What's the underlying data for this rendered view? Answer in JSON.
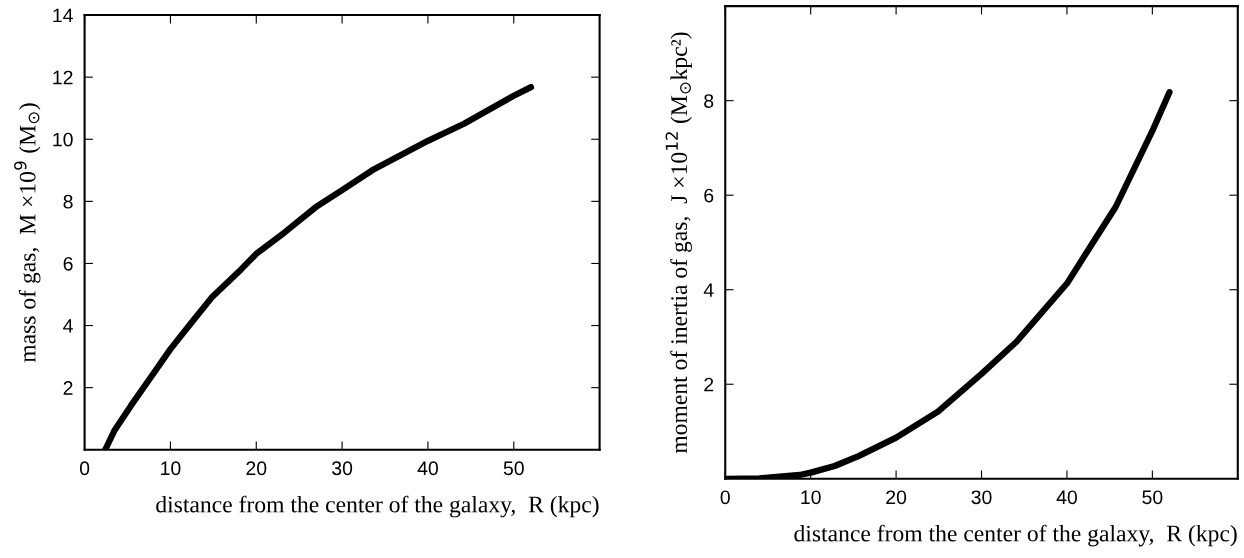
{
  "chart_data": [
    {
      "type": "line",
      "xlabel": "distance from the center of the galaxy,  R (kpc)",
      "ylabel": "mass of gas,  M ×10$^{9}$ (M$_{⊙}$)",
      "xlim": [
        0,
        60
      ],
      "ylim": [
        0,
        14
      ],
      "xticks": [
        0,
        10,
        20,
        30,
        40,
        50
      ],
      "yticks": [
        2,
        4,
        6,
        8,
        10,
        12,
        14
      ],
      "grid": false,
      "legend": false,
      "marker": "none",
      "line_style": "solid",
      "series": [
        {
          "color": "#000000",
          "x": [
            2.4,
            3.5,
            5.4,
            8,
            10,
            12.3,
            14.8,
            18.2,
            20,
            23.3,
            27.1,
            30,
            33.5,
            40,
            44.2,
            50,
            52
          ],
          "values": [
            0,
            0.63,
            1.42,
            2.45,
            3.24,
            4.04,
            4.9,
            5.8,
            6.31,
            7.0,
            7.85,
            8.36,
            9.0,
            9.95,
            10.5,
            11.4,
            11.68
          ]
        }
      ]
    },
    {
      "type": "line",
      "xlabel": "distance from the center of the galaxy,  R (kpc)",
      "ylabel": "moment of inertia of gas,  J ×10$^{12}$ (M$_{⊙}$kpc²)",
      "xlim": [
        0,
        60
      ],
      "ylim": [
        0,
        10
      ],
      "xticks": [
        0,
        10,
        20,
        30,
        40,
        50
      ],
      "yticks": [
        2,
        4,
        6,
        8
      ],
      "grid": false,
      "legend": false,
      "marker": "none",
      "line_style": "solid",
      "series": [
        {
          "color": "#000000",
          "x": [
            0,
            4,
            8.7,
            10,
            12.8,
            15.6,
            20,
            24.9,
            30,
            34.1,
            40,
            43.4,
            45.7,
            50,
            52
          ],
          "values": [
            0,
            0.01,
            0.08,
            0.13,
            0.27,
            0.48,
            0.87,
            1.42,
            2.22,
            2.9,
            4.13,
            5.1,
            5.75,
            7.36,
            8.18
          ]
        }
      ]
    }
  ]
}
